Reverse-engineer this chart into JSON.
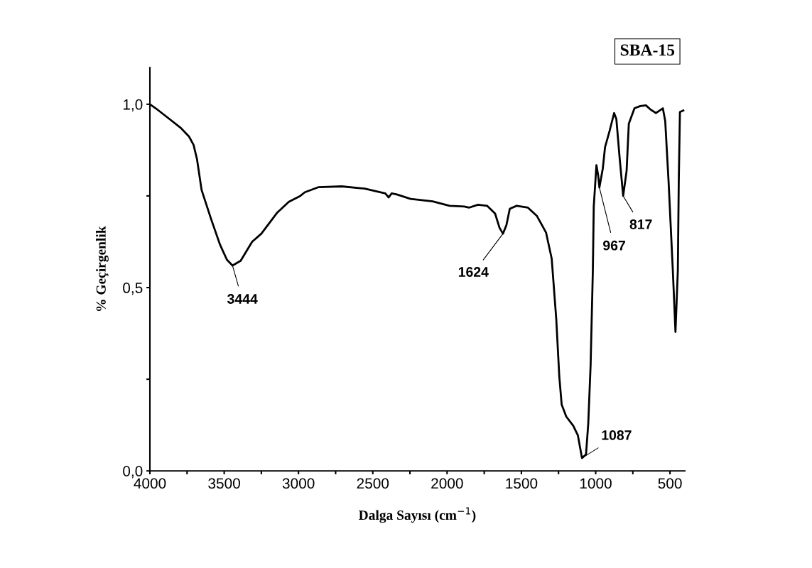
{
  "chart_data": {
    "type": "line",
    "xlabel": "Dalga Sayısı (cm$^{−1}$)",
    "ylabel": "% Geçirgenlik",
    "xlim": [
      4000,
      400
    ],
    "ylim": [
      0,
      1.1
    ],
    "xticks": [
      4000,
      {
        "value": 3750,
        "label": null
      },
      3500,
      {
        "value": 3250,
        "label": null
      },
      3000,
      {
        "value": 2750,
        "label": null
      },
      2500,
      {
        "value": 2250,
        "label": null
      },
      2000,
      {
        "value": 1750,
        "label": null
      },
      1500,
      {
        "value": 1250,
        "label": null
      },
      1000,
      {
        "value": 750,
        "label": null
      },
      500
    ],
    "yticks": [
      {
        "value": 0,
        "label": "0,0"
      },
      {
        "value": 0.25,
        "label": null
      },
      {
        "value": 0.5,
        "label": "0,5"
      },
      {
        "value": 0.75,
        "label": null
      },
      {
        "value": 1.0,
        "label": "1,0"
      }
    ],
    "grid": false,
    "legend": false,
    "marker": "none",
    "line_style": "solid",
    "series": [
      {
        "color": "#000000",
        "x": [
          4000,
          3961,
          3869,
          3791,
          3737,
          3706,
          3683,
          3652,
          3590,
          3529,
          3482,
          3444,
          3389,
          3312,
          3250,
          3142,
          3065,
          2988,
          2957,
          2864,
          2709,
          2555,
          2416,
          2393,
          2373,
          2338,
          2246,
          2097,
          1983,
          1884,
          1853,
          1792,
          1731,
          1677,
          1647,
          1624,
          1601,
          1578,
          1532,
          1456,
          1395,
          1334,
          1296,
          1265,
          1245,
          1229,
          1198,
          1151,
          1120,
          1092,
          1065,
          1050,
          1034,
          1019,
          1013,
          995,
          983,
          975,
          952,
          937,
          906,
          876,
          861,
          838,
          815,
          792,
          777,
          739,
          700,
          662,
          632,
          594,
          548,
          532,
          509,
          481,
          463,
          447,
          441,
          433,
          410
        ],
        "values": [
          1.0,
          0.989,
          0.96,
          0.935,
          0.912,
          0.889,
          0.85,
          0.766,
          0.689,
          0.618,
          0.576,
          0.56,
          0.573,
          0.625,
          0.647,
          0.705,
          0.734,
          0.75,
          0.76,
          0.774,
          0.776,
          0.77,
          0.757,
          0.746,
          0.757,
          0.754,
          0.742,
          0.735,
          0.723,
          0.721,
          0.718,
          0.726,
          0.723,
          0.702,
          0.663,
          0.647,
          0.67,
          0.715,
          0.723,
          0.718,
          0.695,
          0.65,
          0.579,
          0.412,
          0.258,
          0.181,
          0.148,
          0.123,
          0.097,
          0.035,
          0.045,
          0.129,
          0.29,
          0.548,
          0.721,
          0.834,
          0.805,
          0.773,
          0.825,
          0.883,
          0.928,
          0.976,
          0.96,
          0.85,
          0.75,
          0.818,
          0.947,
          0.989,
          0.995,
          0.997,
          0.986,
          0.976,
          0.989,
          0.954,
          0.786,
          0.548,
          0.379,
          0.548,
          0.786,
          0.979,
          0.983
        ]
      }
    ],
    "annotations": [
      "SBA-15",
      {
        "text": "3444",
        "x": 3444,
        "y": 0.56
      },
      {
        "text": "1624",
        "x": 1624,
        "y": 0.647
      },
      {
        "text": "1087",
        "x": 1092,
        "y": 0.035
      },
      {
        "text": "967",
        "x": 975,
        "y": 0.773
      },
      {
        "text": "817",
        "x": 815,
        "y": 0.75
      }
    ]
  }
}
